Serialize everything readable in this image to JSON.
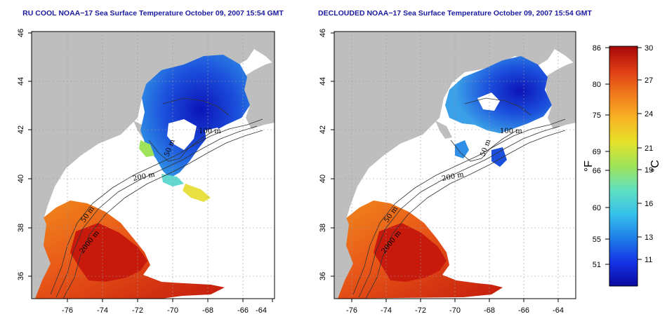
{
  "maps": [
    {
      "title": "RU COOL NOAA−17 Sea Surface Temperature October 09, 2007 15:54 GMT",
      "xticks": [
        "-76",
        "-74",
        "-72",
        "-70",
        "-68",
        "-66",
        "-64"
      ],
      "yticks": [
        "46",
        "44",
        "42",
        "40",
        "38",
        "36"
      ],
      "contour_labels": [
        "100 m",
        "50 m",
        "200 m",
        "50 m",
        "2000 m"
      ]
    },
    {
      "title": "DECLOUDED NOAA−17 Sea Surface Temperature October 09, 2007 15:54 GMT",
      "xticks": [
        "-76",
        "-74",
        "-72",
        "-70",
        "-68",
        "-66",
        "-64"
      ],
      "yticks": [
        "46",
        "44",
        "42",
        "40",
        "38",
        "36"
      ],
      "contour_labels": [
        "100 m",
        "50 m",
        "200 m",
        "50 m",
        "2000 m"
      ]
    }
  ],
  "colorbar": {
    "fahrenheit_ticks": [
      "86",
      "80",
      "75",
      "69",
      "66",
      "60",
      "55",
      "51"
    ],
    "celsius_ticks": [
      "30",
      "27",
      "24",
      "21",
      "19",
      "16",
      "13",
      "11"
    ],
    "fahrenheit_label": "°F",
    "celsius_label": "°C",
    "gradient_colors": [
      "#0a0aa0",
      "#1433e6",
      "#1f7fe8",
      "#35c0ea",
      "#61e0c0",
      "#9fe35a",
      "#e6e22a",
      "#f7b323",
      "#f07a1b",
      "#de3b15",
      "#a50808"
    ]
  },
  "colors": {
    "land": "#bebebe",
    "ocean_missing": "#ffffff",
    "title_text": "#1a1aa0",
    "grid": "#9a9a9a"
  }
}
